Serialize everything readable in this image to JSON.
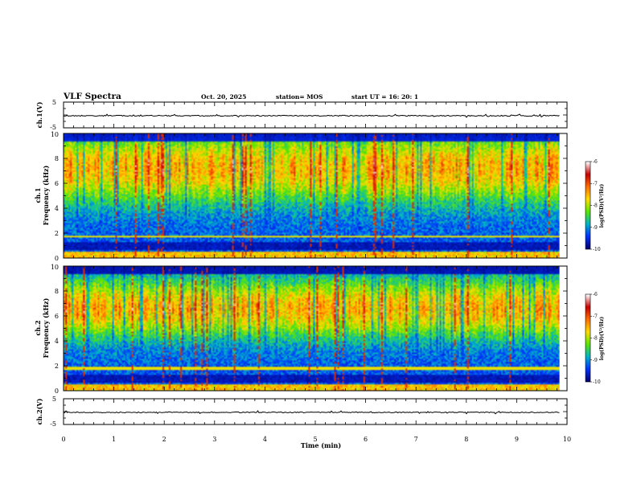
{
  "header": {
    "title": "VLF Spectra",
    "date": "Oct. 20, 2025",
    "station": "station= MOS",
    "start": "start  UT  =    16: 20: 1"
  },
  "chart_data": {
    "type": "heatmap",
    "title": "VLF Spectra",
    "xlabel": "Time  (min)",
    "xlim": [
      0,
      10
    ],
    "x_ticks": [
      "0",
      "1",
      "2",
      "3",
      "4",
      "5",
      "6",
      "7",
      "8",
      "9",
      "10"
    ],
    "waveform_panels": [
      {
        "id": "top",
        "ylabel": "ch.1(V)",
        "ylim": [
          -5,
          5
        ],
        "y_ticks": [
          "5",
          "-5"
        ],
        "trace_level": -0.3
      },
      {
        "id": "bottom",
        "ylabel": "ch.2(V)",
        "ylim": [
          -5,
          5
        ],
        "y_ticks": [
          "5",
          "-5"
        ],
        "trace_level": -0.3
      }
    ],
    "spectrogram_panels": [
      {
        "id": "ch1",
        "ylabel_channel": "ch.1",
        "ylabel": "Frequency  (kHz)",
        "ylim": [
          0,
          10
        ],
        "y_ticks": [
          "0",
          "2",
          "4",
          "6",
          "8",
          "10"
        ],
        "band_center_khz": 7.2,
        "band_width_khz": 2.8,
        "line_khz": 1.7
      },
      {
        "id": "ch2",
        "ylabel_channel": "ch.2",
        "ylabel": "Frequency  (kHz)",
        "ylim": [
          0,
          10
        ],
        "y_ticks": [
          "0",
          "2",
          "4",
          "6",
          "8",
          "10"
        ],
        "band_center_khz": 6.6,
        "band_width_khz": 2.4,
        "line_khz": 1.8
      }
    ],
    "colorbar": {
      "label": "log(PSD)(V²/Hz)",
      "range": [
        -10,
        -6
      ],
      "ticks": [
        "-6",
        "-7",
        "-8",
        "-9",
        "-10"
      ],
      "colormap": [
        "#ffffff",
        "#c80000",
        "#ff6e00",
        "#ffdc00",
        "#5ae600",
        "#00b4c8",
        "#0032ff",
        "#00006e"
      ]
    },
    "end_time_min": 9.85
  }
}
